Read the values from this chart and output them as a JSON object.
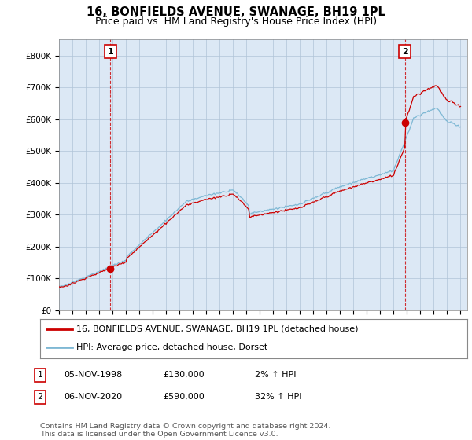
{
  "title": "16, BONFIELDS AVENUE, SWANAGE, BH19 1PL",
  "subtitle": "Price paid vs. HM Land Registry's House Price Index (HPI)",
  "ylim": [
    0,
    850000
  ],
  "yticks": [
    0,
    100000,
    200000,
    300000,
    400000,
    500000,
    600000,
    700000,
    800000
  ],
  "ytick_labels": [
    "£0",
    "£100K",
    "£200K",
    "£300K",
    "£400K",
    "£500K",
    "£600K",
    "£700K",
    "£800K"
  ],
  "hpi_color": "#7eb8d4",
  "price_color": "#cc0000",
  "vline_color": "#cc0000",
  "sale1_year": 1998.84,
  "sale1_price": 130000,
  "sale2_year": 2020.84,
  "sale2_price": 590000,
  "chart_bg": "#dce8f5",
  "legend_line1": "16, BONFIELDS AVENUE, SWANAGE, BH19 1PL (detached house)",
  "legend_line2": "HPI: Average price, detached house, Dorset",
  "table_rows": [
    {
      "num": "1",
      "date": "05-NOV-1998",
      "price": "£130,000",
      "hpi": "2% ↑ HPI"
    },
    {
      "num": "2",
      "date": "06-NOV-2020",
      "price": "£590,000",
      "hpi": "32% ↑ HPI"
    }
  ],
  "footer": "Contains HM Land Registry data © Crown copyright and database right 2024.\nThis data is licensed under the Open Government Licence v3.0.",
  "background_color": "#ffffff",
  "grid_color": "#b0c4d8",
  "title_fontsize": 10.5,
  "subtitle_fontsize": 9,
  "tick_fontsize": 7.5
}
